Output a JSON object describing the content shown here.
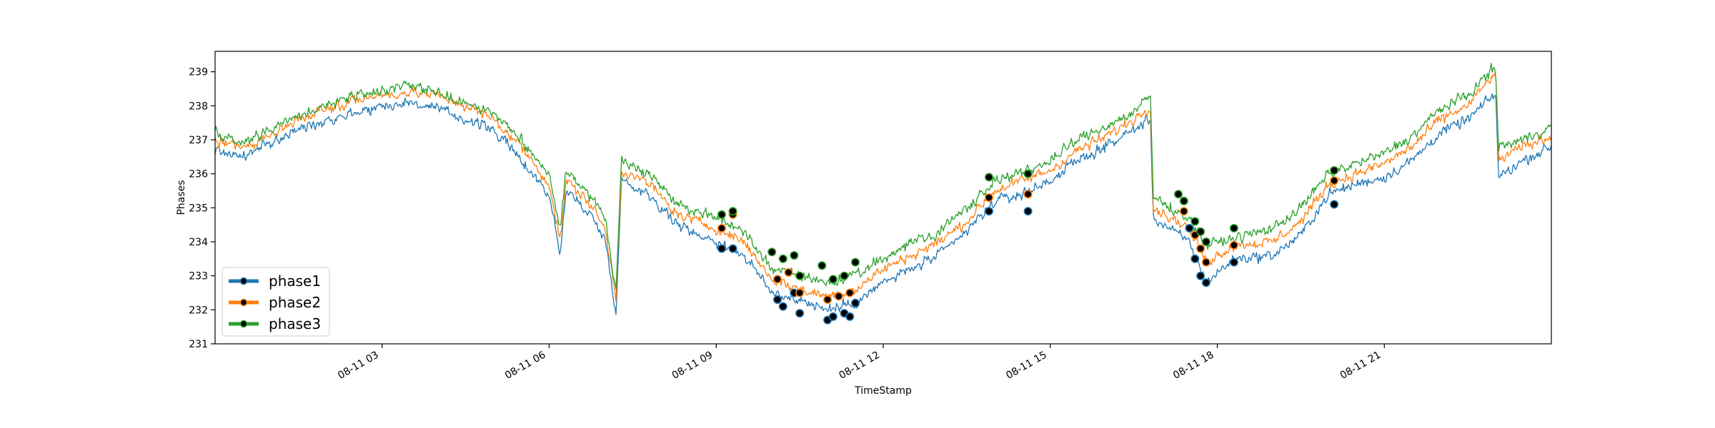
{
  "chart_data": {
    "type": "line",
    "xlabel": "TimeStamp",
    "ylabel": "Phases",
    "xlim": [
      "2023-08-11 00:00",
      "2023-08-11 24:00"
    ],
    "ylim": [
      231,
      239.6
    ],
    "yticks": [
      231,
      232,
      233,
      234,
      235,
      236,
      237,
      238,
      239
    ],
    "xticks": [
      {
        "t": 3,
        "label": "08-11 03"
      },
      {
        "t": 6,
        "label": "08-11 06"
      },
      {
        "t": 9,
        "label": "08-11 09"
      },
      {
        "t": 12,
        "label": "08-11 12"
      },
      {
        "t": 15,
        "label": "08-11 15"
      },
      {
        "t": 18,
        "label": "08-11 18"
      },
      {
        "t": 21,
        "label": "08-11 21"
      }
    ],
    "legend_position": "lower-left",
    "grid": false,
    "series": [
      {
        "name": "phase1",
        "color": "#1f77b4",
        "points": [
          [
            0,
            236.7
          ],
          [
            0.5,
            236.5
          ],
          [
            1,
            236.9
          ],
          [
            1.5,
            237.3
          ],
          [
            2,
            237.6
          ],
          [
            2.5,
            237.8
          ],
          [
            3,
            238
          ],
          [
            3.5,
            238.1
          ],
          [
            4,
            237.9
          ],
          [
            4.5,
            237.6
          ],
          [
            5,
            237.3
          ],
          [
            5.5,
            236.4
          ],
          [
            6,
            235.4
          ],
          [
            6.2,
            233.6
          ],
          [
            6.3,
            235.5
          ],
          [
            6.7,
            234.9
          ],
          [
            7,
            234.1
          ],
          [
            7.2,
            232.0
          ],
          [
            7.3,
            235.8
          ],
          [
            7.8,
            235.4
          ],
          [
            8.3,
            234.5
          ],
          [
            9,
            234.0
          ],
          [
            9.5,
            233.6
          ],
          [
            10,
            232.5
          ],
          [
            10.5,
            232.3
          ],
          [
            11,
            232.0
          ],
          [
            11.5,
            232.2
          ],
          [
            12,
            232.8
          ],
          [
            12.5,
            233.2
          ],
          [
            13,
            233.6
          ],
          [
            13.5,
            234.3
          ],
          [
            14,
            235.2
          ],
          [
            14.5,
            235.4
          ],
          [
            15,
            235.8
          ],
          [
            15.5,
            236.4
          ],
          [
            16,
            236.8
          ],
          [
            16.5,
            237.3
          ],
          [
            16.8,
            237.6
          ],
          [
            16.85,
            234.7
          ],
          [
            17.5,
            234.0
          ],
          [
            17.8,
            232.8
          ],
          [
            18.3,
            233.5
          ],
          [
            19,
            233.6
          ],
          [
            19.5,
            234.2
          ],
          [
            20,
            235.4
          ],
          [
            20.5,
            235.7
          ],
          [
            21,
            235.9
          ],
          [
            21.5,
            236.4
          ],
          [
            22,
            237.2
          ],
          [
            22.5,
            237.6
          ],
          [
            22.9,
            238.2
          ],
          [
            23,
            238.4
          ],
          [
            23.05,
            235.9
          ],
          [
            23.5,
            236.4
          ],
          [
            24,
            236.8
          ]
        ]
      },
      {
        "name": "phase2",
        "color": "#ff7f0e",
        "points": [
          [
            0,
            237.0
          ],
          [
            0.5,
            236.8
          ],
          [
            1,
            237.1
          ],
          [
            1.5,
            237.6
          ],
          [
            2,
            237.9
          ],
          [
            2.5,
            238.2
          ],
          [
            3,
            238.3
          ],
          [
            3.5,
            238.4
          ],
          [
            4,
            238.3
          ],
          [
            4.5,
            238.0
          ],
          [
            5,
            237.6
          ],
          [
            5.5,
            236.8
          ],
          [
            6,
            235.7
          ],
          [
            6.2,
            234.0
          ],
          [
            6.3,
            235.8
          ],
          [
            6.7,
            235.2
          ],
          [
            7,
            234.4
          ],
          [
            7.2,
            232.4
          ],
          [
            7.3,
            236.1
          ],
          [
            7.8,
            235.7
          ],
          [
            8.3,
            234.8
          ],
          [
            9,
            234.4
          ],
          [
            9.5,
            234.0
          ],
          [
            10,
            232.9
          ],
          [
            10.5,
            232.6
          ],
          [
            11,
            232.4
          ],
          [
            11.5,
            232.6
          ],
          [
            12,
            233.2
          ],
          [
            12.5,
            233.6
          ],
          [
            13,
            234.0
          ],
          [
            13.5,
            234.6
          ],
          [
            14,
            235.5
          ],
          [
            14.5,
            235.8
          ],
          [
            15,
            236.1
          ],
          [
            15.5,
            236.7
          ],
          [
            16,
            237.1
          ],
          [
            16.5,
            237.6
          ],
          [
            16.8,
            238.0
          ],
          [
            16.85,
            235.0
          ],
          [
            17.5,
            234.4
          ],
          [
            17.8,
            233.4
          ],
          [
            18.3,
            233.9
          ],
          [
            19,
            234.0
          ],
          [
            19.5,
            234.6
          ],
          [
            20,
            235.7
          ],
          [
            20.5,
            236.0
          ],
          [
            21,
            236.3
          ],
          [
            21.5,
            236.8
          ],
          [
            22,
            237.6
          ],
          [
            22.5,
            238.0
          ],
          [
            22.9,
            238.8
          ],
          [
            23,
            238.9
          ],
          [
            23.05,
            236.4
          ],
          [
            23.5,
            236.8
          ],
          [
            24,
            237.1
          ]
        ]
      },
      {
        "name": "phase3",
        "color": "#2ca02c",
        "points": [
          [
            0,
            237.2
          ],
          [
            0.5,
            236.9
          ],
          [
            1,
            237.3
          ],
          [
            1.5,
            237.7
          ],
          [
            2,
            238.0
          ],
          [
            2.5,
            238.3
          ],
          [
            3,
            238.4
          ],
          [
            3.5,
            238.6
          ],
          [
            4,
            238.4
          ],
          [
            4.5,
            238.1
          ],
          [
            5,
            237.8
          ],
          [
            5.5,
            237.0
          ],
          [
            6,
            236.0
          ],
          [
            6.2,
            234.3
          ],
          [
            6.3,
            236.1
          ],
          [
            6.7,
            235.4
          ],
          [
            7,
            234.7
          ],
          [
            7.2,
            232.6
          ],
          [
            7.3,
            236.4
          ],
          [
            7.8,
            236.0
          ],
          [
            8.3,
            235.1
          ],
          [
            9,
            234.7
          ],
          [
            9.5,
            234.3
          ],
          [
            10,
            233.2
          ],
          [
            10.5,
            233.0
          ],
          [
            11,
            232.8
          ],
          [
            11.5,
            233.0
          ],
          [
            12,
            233.5
          ],
          [
            12.5,
            234.0
          ],
          [
            13,
            234.3
          ],
          [
            13.5,
            235.0
          ],
          [
            14,
            235.8
          ],
          [
            14.5,
            236.0
          ],
          [
            15,
            236.4
          ],
          [
            15.5,
            237.0
          ],
          [
            16,
            237.4
          ],
          [
            16.5,
            237.8
          ],
          [
            16.8,
            238.3
          ],
          [
            16.85,
            235.3
          ],
          [
            17.5,
            234.7
          ],
          [
            17.8,
            233.9
          ],
          [
            18.3,
            234.1
          ],
          [
            19,
            234.4
          ],
          [
            19.5,
            235.0
          ],
          [
            20,
            236.0
          ],
          [
            20.5,
            236.3
          ],
          [
            21,
            236.6
          ],
          [
            21.5,
            237.1
          ],
          [
            22,
            237.9
          ],
          [
            22.5,
            238.3
          ],
          [
            22.9,
            239.0
          ],
          [
            23,
            239.1
          ],
          [
            23.05,
            236.8
          ],
          [
            23.5,
            237.0
          ],
          [
            24,
            237.4
          ]
        ]
      }
    ],
    "anomalies": [
      {
        "series": "phase1",
        "points": [
          [
            9.1,
            233.8
          ],
          [
            9.3,
            233.8
          ],
          [
            10.1,
            232.3
          ],
          [
            10.2,
            232.1
          ],
          [
            10.4,
            232.5
          ],
          [
            10.5,
            231.9
          ],
          [
            11.0,
            231.7
          ],
          [
            11.1,
            231.8
          ],
          [
            11.3,
            231.9
          ],
          [
            11.4,
            231.8
          ],
          [
            11.5,
            232.2
          ],
          [
            13.9,
            234.9
          ],
          [
            14.6,
            234.9
          ],
          [
            17.5,
            234.4
          ],
          [
            17.6,
            233.5
          ],
          [
            17.7,
            233.0
          ],
          [
            17.8,
            232.8
          ],
          [
            18.3,
            233.4
          ],
          [
            20.1,
            235.1
          ]
        ]
      },
      {
        "series": "phase2",
        "points": [
          [
            9.1,
            234.4
          ],
          [
            9.3,
            234.8
          ],
          [
            10.1,
            232.9
          ],
          [
            10.3,
            233.1
          ],
          [
            10.5,
            232.5
          ],
          [
            11.0,
            232.3
          ],
          [
            11.2,
            232.4
          ],
          [
            11.4,
            232.5
          ],
          [
            13.9,
            235.3
          ],
          [
            14.6,
            235.4
          ],
          [
            17.4,
            234.9
          ],
          [
            17.6,
            234.2
          ],
          [
            17.7,
            233.8
          ],
          [
            17.8,
            233.4
          ],
          [
            18.3,
            233.9
          ],
          [
            20.1,
            235.8
          ]
        ]
      },
      {
        "series": "phase3",
        "points": [
          [
            9.1,
            234.8
          ],
          [
            9.3,
            234.9
          ],
          [
            10.0,
            233.7
          ],
          [
            10.2,
            233.5
          ],
          [
            10.4,
            233.6
          ],
          [
            10.5,
            233.0
          ],
          [
            10.9,
            233.3
          ],
          [
            11.1,
            232.9
          ],
          [
            11.3,
            233.0
          ],
          [
            11.5,
            233.4
          ],
          [
            13.9,
            235.9
          ],
          [
            14.6,
            236.0
          ],
          [
            17.3,
            235.4
          ],
          [
            17.4,
            235.2
          ],
          [
            17.6,
            234.6
          ],
          [
            17.7,
            234.3
          ],
          [
            17.8,
            234.0
          ],
          [
            18.3,
            234.4
          ],
          [
            20.1,
            236.1
          ]
        ]
      }
    ]
  }
}
